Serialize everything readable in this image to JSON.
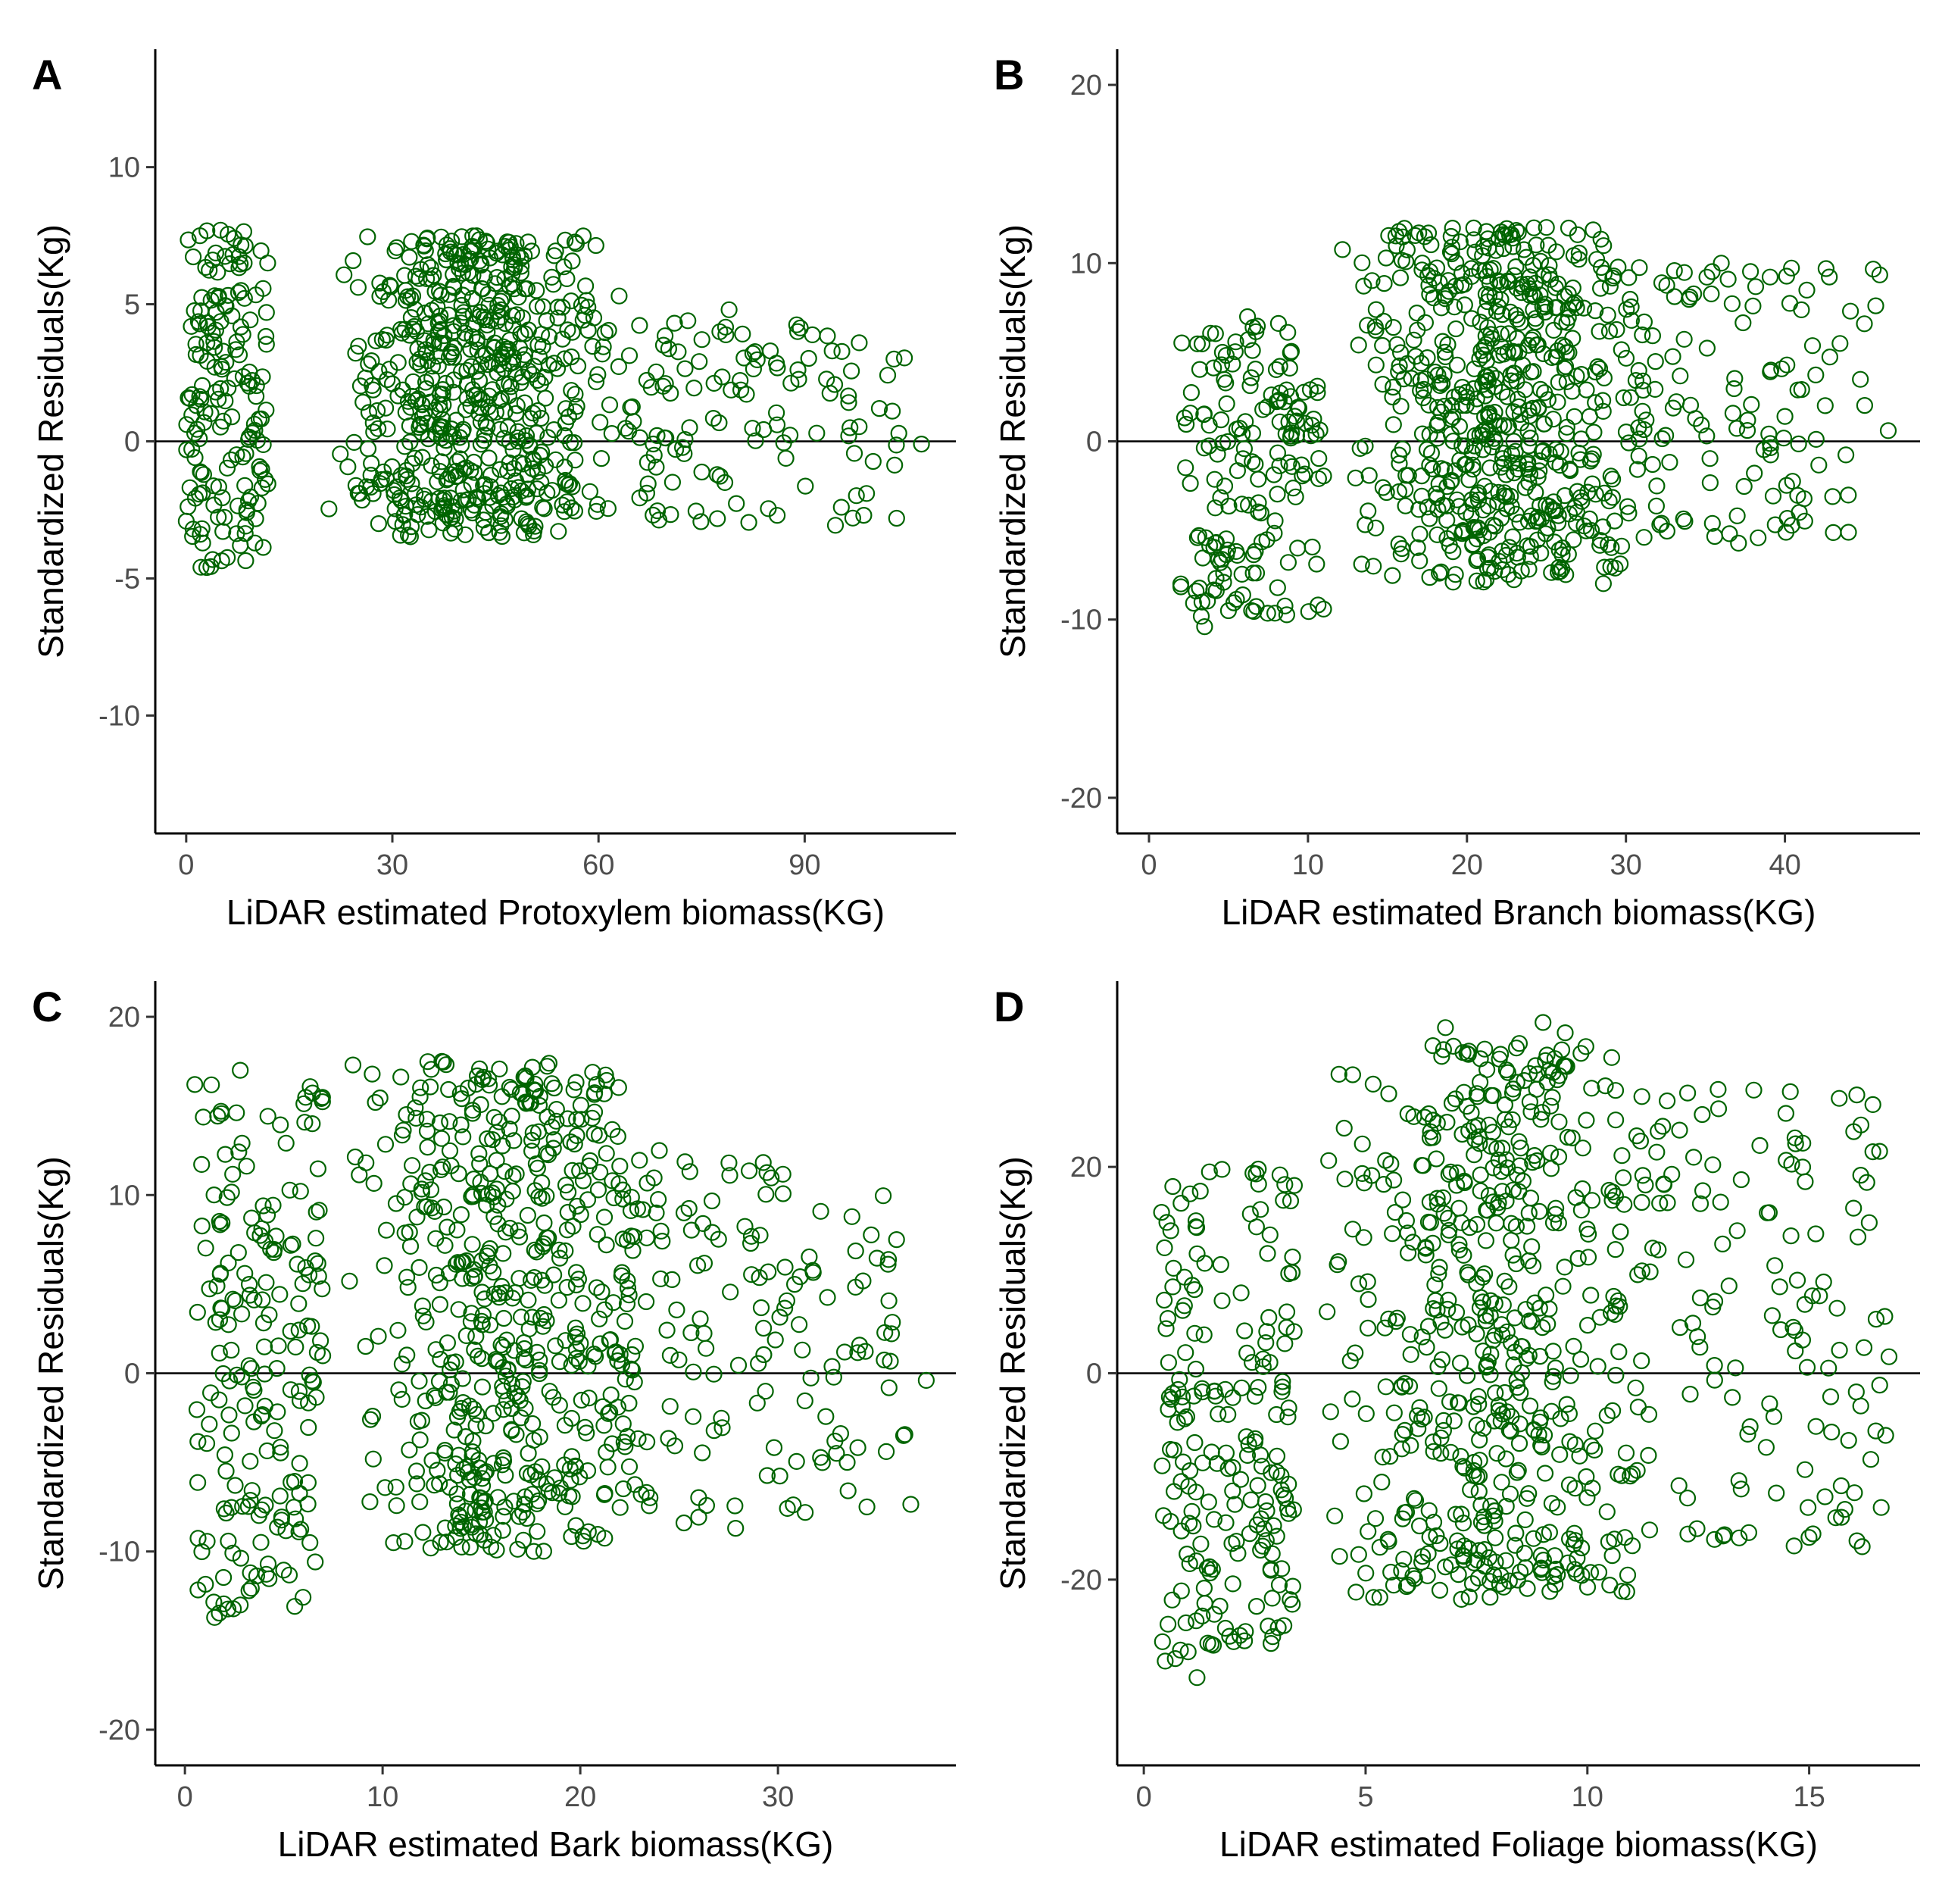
{
  "figure": {
    "point_color": "#006400",
    "axis_color": "#000000",
    "tick_label_color": "#4d4d4d"
  },
  "chart_data": [
    {
      "type": "scatter",
      "panel": "A",
      "xlabel": "LiDAR estimated Protoxylem biomass(KG)",
      "ylabel": "Standardized Residuals(Kg)",
      "xlim": [
        -4.5,
        112
      ],
      "ylim": [
        -14.3,
        14.3
      ],
      "xticks": [
        0,
        30,
        60,
        90
      ],
      "yticks": [
        -10,
        -5,
        0,
        5,
        10
      ],
      "hline": 0,
      "n_points": 900,
      "sample_points": [
        [
          2,
          7.5
        ],
        [
          5,
          7.7
        ],
        [
          1,
          -3.2
        ],
        [
          3,
          -4.6
        ],
        [
          30,
          2.1
        ],
        [
          28,
          -3.0
        ],
        [
          46,
          6.8
        ],
        [
          63,
          5.3
        ],
        [
          73,
          4.4
        ],
        [
          79,
          4.8
        ],
        [
          85,
          3.3
        ],
        [
          94,
          3.3
        ],
        [
          103,
          3.0
        ],
        [
          107,
          -0.1
        ],
        [
          99,
          -1.9
        ],
        [
          97,
          -2.8
        ],
        [
          86,
          -2.7
        ]
      ]
    },
    {
      "type": "scatter",
      "panel": "B",
      "xlabel": "LiDAR estimated Branch biomass(KG)",
      "ylabel": "Standardized Residuals(Kg)",
      "xlim": [
        -2,
        48.5
      ],
      "ylim": [
        -22,
        22
      ],
      "xticks": [
        0,
        10,
        20,
        30,
        40
      ],
      "yticks": [
        -20,
        -10,
        0,
        10,
        20
      ],
      "hline": 0,
      "n_points": 900,
      "sample_points": [
        [
          3.5,
          -10.4
        ],
        [
          5,
          -9.5
        ],
        [
          2,
          -8
        ],
        [
          25,
          12.0
        ],
        [
          19,
          11.5
        ],
        [
          36,
          10
        ],
        [
          45,
          6.6
        ],
        [
          46.5,
          0.6
        ],
        [
          44,
          -5.1
        ],
        [
          43,
          -3.1
        ],
        [
          40,
          1.4
        ]
      ]
    },
    {
      "type": "scatter",
      "panel": "C",
      "xlabel": "LiDAR estimated Bark biomass(KG)",
      "ylabel": "Standardized Residuals(Kg)",
      "xlim": [
        -1.5,
        39
      ],
      "ylim": [
        -22,
        22
      ],
      "xticks": [
        0,
        10,
        20,
        30
      ],
      "yticks": [
        -20,
        -10,
        0,
        10,
        20
      ],
      "hline": 0,
      "n_points": 900,
      "sample_points": [
        [
          1.5,
          -13.7
        ],
        [
          2.8,
          -13
        ],
        [
          0.5,
          16.2
        ],
        [
          2.8,
          17
        ],
        [
          8.5,
          17.3
        ],
        [
          13,
          17.5
        ],
        [
          36,
          7.5
        ],
        [
          37.5,
          -0.4
        ],
        [
          34.5,
          -7.5
        ],
        [
          33.5,
          -5
        ],
        [
          24,
          12.5
        ]
      ]
    },
    {
      "type": "scatter",
      "panel": "D",
      "xlabel": "LiDAR estimated Foliage biomass(KG)",
      "ylabel": "Standardized Residuals(Kg)",
      "xlim": [
        -0.6,
        17.5
      ],
      "ylim": [
        -38,
        38
      ],
      "xticks": [
        0,
        5,
        10,
        15
      ],
      "yticks": [
        -20,
        0,
        20
      ],
      "hline": 0,
      "n_points": 900,
      "sample_points": [
        [
          1.2,
          -29.5
        ],
        [
          1.0,
          -27
        ],
        [
          6.8,
          33.5
        ],
        [
          9.0,
          34
        ],
        [
          9.5,
          33
        ],
        [
          16.8,
          1.6
        ],
        [
          15.6,
          -14
        ],
        [
          16,
          16
        ],
        [
          16.3,
          18.5
        ],
        [
          0.4,
          15.6
        ]
      ]
    }
  ]
}
